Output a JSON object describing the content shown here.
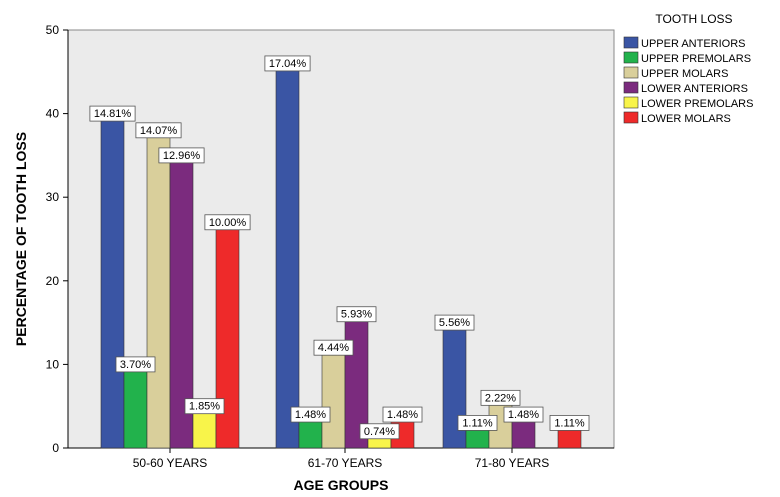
{
  "chart_data": {
    "type": "bar",
    "xlabel": "AGE GROUPS",
    "ylabel": "PERCENTAGE OF TOOTH LOSS",
    "ylim": [
      0,
      50
    ],
    "yticks": [
      0,
      10,
      20,
      30,
      40,
      50
    ],
    "grid": false,
    "legend_title": "TOOTH LOSS",
    "legend_position": "right",
    "categories": [
      "50-60 YEARS",
      "61-70 YEARS",
      "71-80 YEARS"
    ],
    "series": [
      {
        "name": "UPPER ANTERIORS",
        "color": "#3a55a4",
        "values": [
          40,
          46,
          15
        ],
        "labels": [
          "14.81%",
          "17.04%",
          "5.56%"
        ]
      },
      {
        "name": "UPPER PREMOLARS",
        "color": "#22b24c",
        "values": [
          10,
          4,
          3
        ],
        "labels": [
          "3.70%",
          "1.48%",
          "1.11%"
        ]
      },
      {
        "name": "UPPER MOLARS",
        "color": "#d9cf9b",
        "values": [
          38,
          12,
          6
        ],
        "labels": [
          "14.07%",
          "4.44%",
          "2.22%"
        ]
      },
      {
        "name": "LOWER ANTERIORS",
        "color": "#7b2b7e",
        "values": [
          35,
          16,
          4
        ],
        "labels": [
          "12.96%",
          "5.93%",
          "1.48%"
        ]
      },
      {
        "name": "LOWER PREMOLARS",
        "color": "#f8f44a",
        "values": [
          5,
          2,
          0
        ],
        "labels": [
          "1.85%",
          "0.74%",
          ""
        ]
      },
      {
        "name": "LOWER MOLARS",
        "color": "#ee2a2a",
        "values": [
          27,
          4,
          3
        ],
        "labels": [
          "10.00%",
          "1.48%",
          "1.11%"
        ]
      }
    ]
  }
}
